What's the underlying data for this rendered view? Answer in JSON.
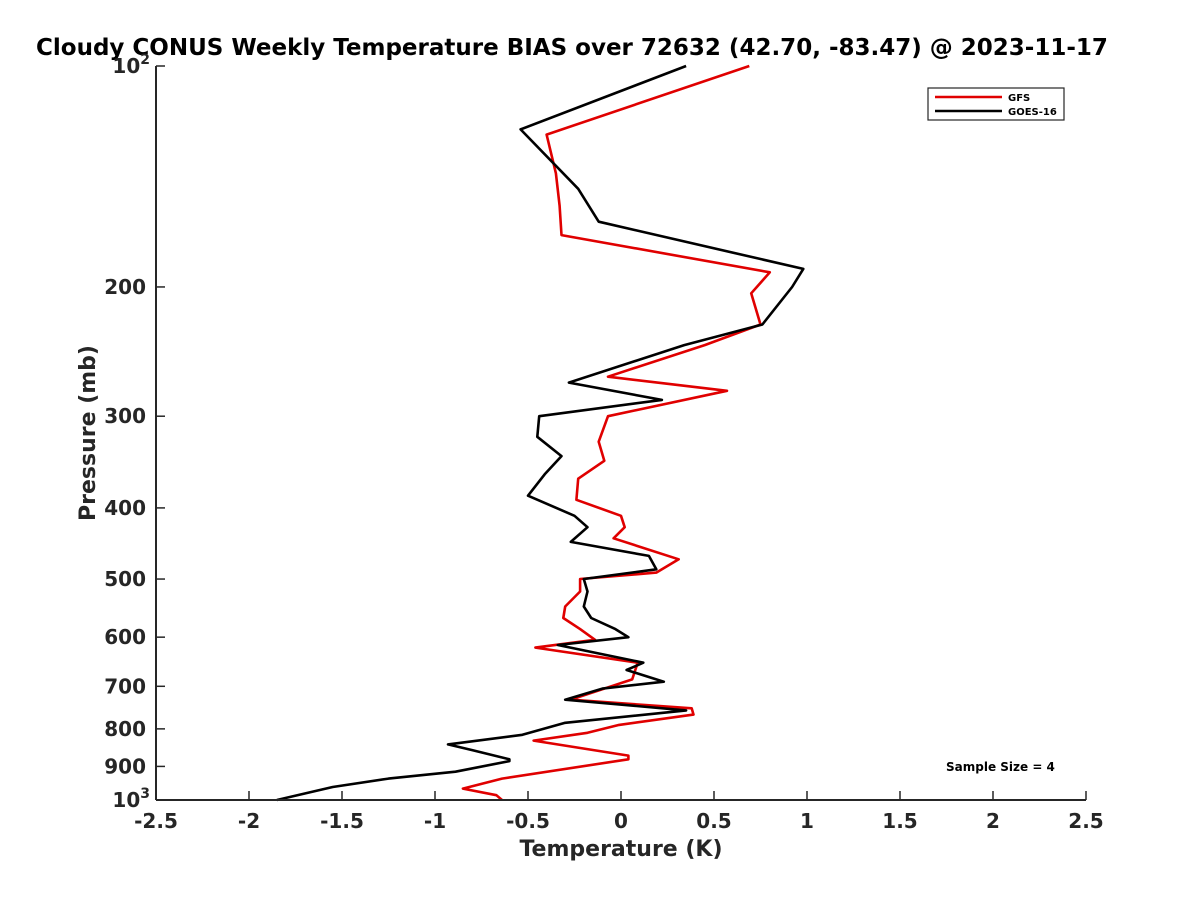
{
  "chart_data": {
    "type": "line",
    "title": "Cloudy CONUS Weekly Temperature BIAS over 72632 (42.70, -83.47) @ 2023-11-17",
    "xlabel": "Temperature (K)",
    "ylabel": "Pressure (mb)",
    "xlim": [
      -2.5,
      2.5
    ],
    "ylim": [
      100,
      1000
    ],
    "yscale": "log",
    "y_reversed": true,
    "grid": false,
    "legend_position": "top-right",
    "x_ticks": [
      "-2.5",
      "-2",
      "-1.5",
      "-1",
      "-0.5",
      "0",
      "0.5",
      "1",
      "1.5",
      "2",
      "2.5"
    ],
    "y_ticks": [
      {
        "value": 100,
        "base": "10",
        "exp": "2"
      },
      {
        "value": 200,
        "base": "200",
        "exp": ""
      },
      {
        "value": 300,
        "base": "300",
        "exp": ""
      },
      {
        "value": 400,
        "base": "400",
        "exp": ""
      },
      {
        "value": 500,
        "base": "500",
        "exp": ""
      },
      {
        "value": 600,
        "base": "600",
        "exp": ""
      },
      {
        "value": 700,
        "base": "700",
        "exp": ""
      },
      {
        "value": 800,
        "base": "800",
        "exp": ""
      },
      {
        "value": 900,
        "base": "900",
        "exp": ""
      },
      {
        "value": 1000,
        "base": "10",
        "exp": "3"
      }
    ],
    "annotation": "Sample Size = 4",
    "series": [
      {
        "name": "GFS",
        "color": "#e00000",
        "points": [
          [
            0.69,
            100
          ],
          [
            -0.4,
            124
          ],
          [
            -0.35,
            140
          ],
          [
            -0.33,
            155
          ],
          [
            -0.32,
            170
          ],
          [
            0.8,
            191
          ],
          [
            0.7,
            204
          ],
          [
            0.75,
            225
          ],
          [
            0.45,
            240
          ],
          [
            -0.07,
            265
          ],
          [
            0.57,
            277
          ],
          [
            -0.07,
            300
          ],
          [
            -0.12,
            325
          ],
          [
            -0.09,
            345
          ],
          [
            -0.23,
            365
          ],
          [
            -0.24,
            390
          ],
          [
            0.0,
            410
          ],
          [
            0.02,
            425
          ],
          [
            -0.04,
            440
          ],
          [
            0.31,
            470
          ],
          [
            0.19,
            490
          ],
          [
            -0.22,
            500
          ],
          [
            -0.22,
            520
          ],
          [
            -0.3,
            545
          ],
          [
            -0.31,
            565
          ],
          [
            -0.22,
            585
          ],
          [
            -0.14,
            605
          ],
          [
            -0.46,
            620
          ],
          [
            0.09,
            650
          ],
          [
            0.06,
            685
          ],
          [
            -0.27,
            730
          ],
          [
            0.38,
            750
          ],
          [
            0.39,
            765
          ],
          [
            -0.01,
            790
          ],
          [
            -0.18,
            810
          ],
          [
            -0.47,
            830
          ],
          [
            0.04,
            870
          ],
          [
            0.04,
            880
          ],
          [
            -0.64,
            935
          ],
          [
            -0.85,
            965
          ],
          [
            -0.67,
            985
          ],
          [
            -0.64,
            1000
          ]
        ]
      },
      {
        "name": "GOES-16",
        "color": "#000000",
        "points": [
          [
            0.35,
            100
          ],
          [
            -0.54,
            122
          ],
          [
            -0.23,
            147
          ],
          [
            -0.12,
            163
          ],
          [
            0.98,
            189
          ],
          [
            0.92,
            200
          ],
          [
            0.76,
            225
          ],
          [
            0.34,
            240
          ],
          [
            -0.28,
            270
          ],
          [
            0.22,
            285
          ],
          [
            -0.44,
            300
          ],
          [
            -0.45,
            320
          ],
          [
            -0.32,
            340
          ],
          [
            -0.41,
            360
          ],
          [
            -0.5,
            385
          ],
          [
            -0.25,
            410
          ],
          [
            -0.18,
            425
          ],
          [
            -0.27,
            445
          ],
          [
            0.15,
            465
          ],
          [
            0.19,
            485
          ],
          [
            -0.2,
            500
          ],
          [
            -0.18,
            520
          ],
          [
            -0.2,
            545
          ],
          [
            -0.16,
            565
          ],
          [
            -0.03,
            585
          ],
          [
            0.04,
            600
          ],
          [
            -0.34,
            615
          ],
          [
            0.12,
            650
          ],
          [
            0.03,
            665
          ],
          [
            0.23,
            690
          ],
          [
            -0.1,
            705
          ],
          [
            -0.3,
            730
          ],
          [
            0.35,
            755
          ],
          [
            -0.3,
            785
          ],
          [
            -0.53,
            815
          ],
          [
            -0.93,
            840
          ],
          [
            -0.8,
            855
          ],
          [
            -0.6,
            880
          ],
          [
            -0.6,
            885
          ],
          [
            -0.89,
            915
          ],
          [
            -1.25,
            935
          ],
          [
            -1.55,
            960
          ],
          [
            -1.85,
            1000
          ]
        ]
      }
    ]
  }
}
